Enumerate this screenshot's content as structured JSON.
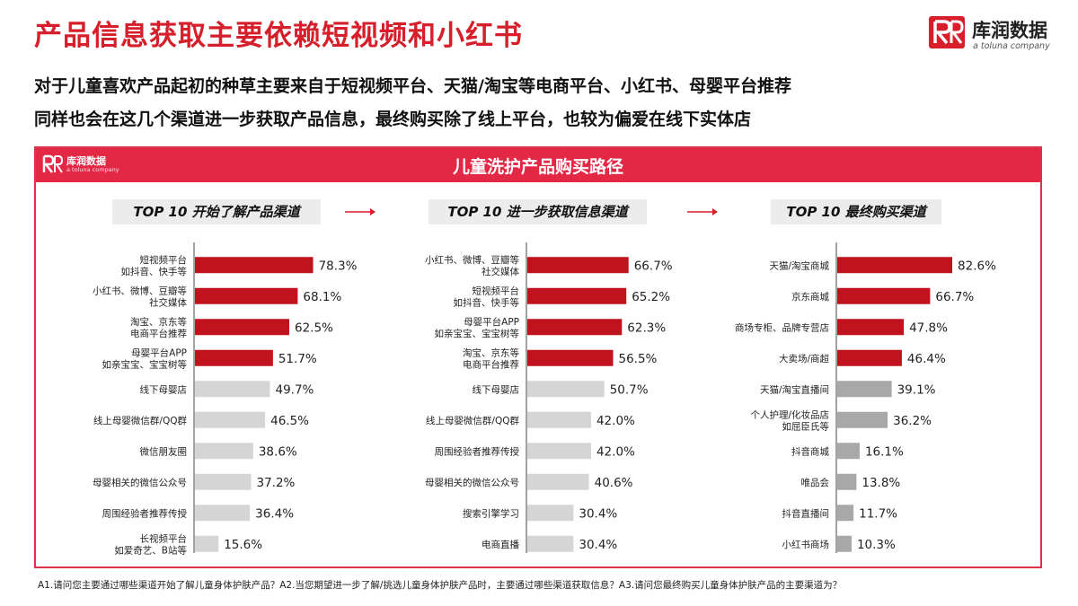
{
  "title": "产品信息获取主要依赖短视频和小红书",
  "logo": {
    "name": "库润数据",
    "tagline": "a toluna company"
  },
  "intro": {
    "line1": "对于儿童喜欢产品起初的种草主要来自于短视频平台、天猫/淘宝等电商平台、小红书、母婴平台推荐",
    "line2": "同样也会在这几个渠道进一步获取产品信息，最终购买除了线上平台，也较为偏爱在线下实体店"
  },
  "panel": {
    "title": "儿童洗护产品购买路径"
  },
  "colors": {
    "accent": "#d61f2a",
    "header": "#e32846",
    "bar_top": "#c0131d",
    "bar_light": "#d5d5d5",
    "bar_grey": "#a8a8a8"
  },
  "chart_data": [
    {
      "type": "bar",
      "title": "TOP 10 开始了解产品渠道",
      "categories": [
        "短视频平台\n如抖音、快手等",
        "小红书、微博、豆瓣等\n社交媒体",
        "淘宝、京东等\n电商平台推荐",
        "母婴平台APP\n如亲宝宝、宝宝树等",
        "线下母婴店",
        "线上母婴微信群/QQ群",
        "微信朋友圈",
        "母婴相关的微信公众号",
        "周围经验者推荐传授",
        "长视频平台\n如爱奇艺、B站等"
      ],
      "values": [
        78.3,
        68.1,
        62.5,
        51.7,
        49.7,
        46.5,
        38.6,
        37.2,
        36.4,
        15.6
      ],
      "value_labels": [
        "78.3%",
        "68.1%",
        "62.5%",
        "51.7%",
        "49.7%",
        "46.5%",
        "38.6%",
        "37.2%",
        "36.4%",
        "15.6%"
      ],
      "highlight_count": 4,
      "base_color": "#d5d5d5"
    },
    {
      "type": "bar",
      "title": "TOP 10 进一步获取信息渠道",
      "categories": [
        "小红书、微博、豆瓣等\n社交媒体",
        "短视频平台\n如抖音、快手等",
        "母婴平台APP\n如亲宝宝、宝宝树等",
        "淘宝、京东等\n电商平台推荐",
        "线下母婴店",
        "线上母婴微信群/QQ群",
        "周围经验者推荐传授",
        "母婴相关的微信公众号",
        "搜索引擎学习",
        "电商直播"
      ],
      "values": [
        66.7,
        65.2,
        62.3,
        56.5,
        50.7,
        42.0,
        42.0,
        40.6,
        30.4,
        30.4
      ],
      "value_labels": [
        "66.7%",
        "65.2%",
        "62.3%",
        "56.5%",
        "50.7%",
        "42.0%",
        "42.0%",
        "40.6%",
        "30.4%",
        "30.4%"
      ],
      "highlight_count": 4,
      "base_color": "#d5d5d5"
    },
    {
      "type": "bar",
      "title": "TOP 10 最终购买渠道",
      "categories": [
        "天猫/淘宝商城",
        "京东商城",
        "商场专柜、品牌专营店",
        "大卖场/商超",
        "天猫/淘宝直播间",
        "个人护理/化妆品店\n如屈臣氏等",
        "抖音商城",
        "唯品会",
        "抖音直播间",
        "小红书商场"
      ],
      "values": [
        82.6,
        66.7,
        47.8,
        46.4,
        39.1,
        36.2,
        16.1,
        13.8,
        11.7,
        10.3
      ],
      "value_labels": [
        "82.6%",
        "66.7%",
        "47.8%",
        "46.4%",
        "39.1%",
        "36.2%",
        "16.1%",
        "13.8%",
        "11.7%",
        "10.3%"
      ],
      "highlight_count": 4,
      "base_color": "#a8a8a8"
    }
  ],
  "footnote": "A1.请问您主要通过哪些渠道开始了解儿童身体护肤产品？A2.当您期望进一步了解/挑选儿童身体护肤产品时，主要通过哪些渠道获取信息？A3.请问您最终购买儿童身体护肤产品的主要渠道为？"
}
